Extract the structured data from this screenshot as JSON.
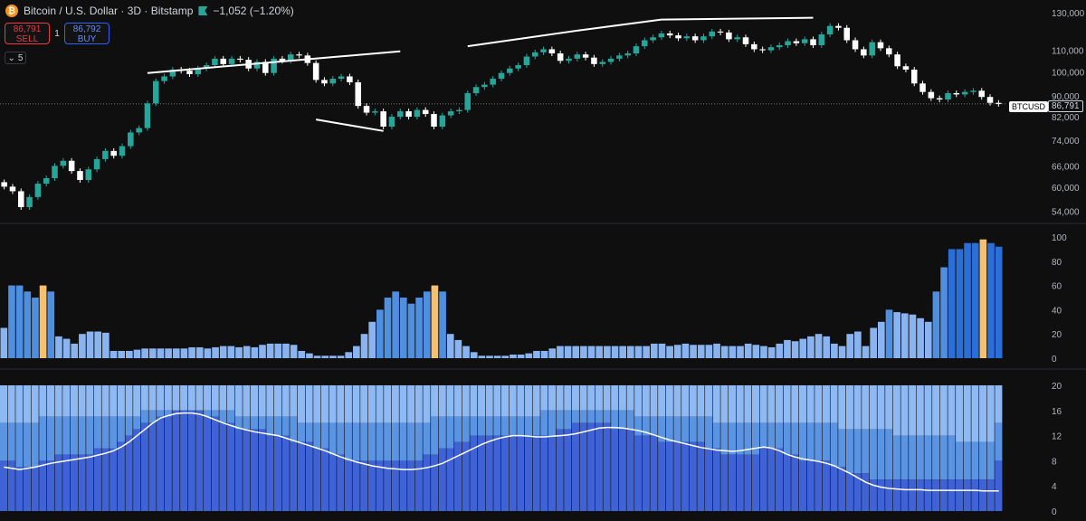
{
  "header": {
    "coin_glyph": "₿",
    "title": "Bitcoin / U.S. Dollar · 3D · Bitstamp",
    "change": "−1,052 (−1.20%)",
    "sell_price": "86,791",
    "sell_label": "SELL",
    "quantity": "1",
    "buy_price": "86,792",
    "buy_label": "BUY",
    "collapse_count": "5",
    "symbol": "BTCUSD",
    "last_price": "86,791"
  },
  "colors": {
    "up": "#26a69a",
    "down": "#ffffff",
    "bar_light": "#8ab4f0",
    "bar_mid": "#4f8fe0",
    "bar_dark": "#2a6ed8",
    "bar_highlight": "#f5c170",
    "stack_top": "#8fb9f2",
    "stack_mid": "#5a94e2",
    "stack_bottom": "#3f63d6"
  },
  "chart_data": [
    {
      "type": "candlestick",
      "title": "",
      "scale": "log",
      "ylim": [
        52000,
        132000
      ],
      "yticks": [
        54000,
        60000,
        66000,
        74000,
        82000,
        90000,
        100000,
        110000,
        130000
      ],
      "ytick_labels": [
        "54,000",
        "60,000",
        "66,000",
        "74,000",
        "82,000",
        "90,000",
        "100,000",
        "110,000",
        "130,000"
      ],
      "last_price": 86791,
      "closes": [
        60200,
        59000,
        55000,
        57500,
        61000,
        62500,
        66000,
        67500,
        64500,
        62000,
        65000,
        68000,
        70500,
        69000,
        72000,
        76500,
        78000,
        87000,
        96000,
        98000,
        101000,
        100500,
        99000,
        101500,
        103000,
        106000,
        103500,
        106000,
        105500,
        101500,
        104500,
        99500,
        106000,
        105000,
        108000,
        107500,
        104000,
        96500,
        95000,
        97000,
        98000,
        95500,
        86000,
        83500,
        84000,
        78500,
        82000,
        84000,
        82000,
        84500,
        83000,
        78500,
        82500,
        84000,
        84500,
        91000,
        93500,
        94500,
        97000,
        99500,
        101500,
        103000,
        107000,
        109000,
        110500,
        108500,
        105000,
        106000,
        108000,
        106500,
        103500,
        104500,
        106000,
        107500,
        108500,
        112000,
        115000,
        116500,
        118500,
        117500,
        116000,
        117000,
        115000,
        117000,
        119500,
        119000,
        115500,
        116500,
        113000,
        110500,
        110000,
        111500,
        112500,
        114500,
        113500,
        115500,
        112500,
        118000,
        122500,
        121500,
        115000,
        110500,
        107500,
        114000,
        111000,
        108000,
        102500,
        101000,
        95000,
        91500,
        89000,
        88500,
        91000,
        90500,
        91500,
        92000,
        89500,
        87200,
        86791
      ],
      "trendlines": [
        {
          "from": [
            17,
            99500
          ],
          "to": [
            47,
            109500
          ]
        },
        {
          "from": [
            37,
            81000
          ],
          "to": [
            45,
            77000
          ]
        },
        {
          "from": [
            55,
            112000
          ],
          "to": [
            68,
            120000
          ]
        },
        {
          "from": [
            68,
            120000
          ],
          "to": [
            78,
            126000
          ]
        },
        {
          "from": [
            78,
            126000
          ],
          "to": [
            96,
            127000
          ]
        }
      ]
    },
    {
      "type": "bar",
      "title": "",
      "ylim": [
        0,
        100
      ],
      "yticks": [
        0,
        20,
        40,
        60,
        80,
        100
      ],
      "values": [
        25,
        60,
        60,
        55,
        50,
        60,
        55,
        18,
        16,
        12,
        20,
        22,
        22,
        21,
        6,
        6,
        6,
        7,
        8,
        8,
        8,
        8,
        8,
        8,
        9,
        9,
        8,
        9,
        10,
        10,
        9,
        10,
        9,
        11,
        12,
        12,
        12,
        11,
        6,
        4,
        2,
        2,
        2,
        2,
        5,
        10,
        20,
        30,
        40,
        50,
        55,
        50,
        45,
        50,
        55,
        60,
        55,
        20,
        15,
        10,
        5,
        2,
        2,
        2,
        2,
        3,
        3,
        4,
        6,
        6,
        8,
        10,
        10,
        10,
        10,
        10,
        10,
        10,
        10,
        10,
        10,
        10,
        10,
        12,
        12,
        10,
        11,
        12,
        11,
        11,
        11,
        12,
        10,
        10,
        10,
        12,
        11,
        10,
        9,
        12,
        15,
        14,
        16,
        18,
        20,
        18,
        12,
        10,
        20,
        22,
        10,
        25,
        30,
        40,
        38,
        37,
        36,
        33,
        30,
        55,
        75,
        90,
        90,
        95,
        95,
        98,
        95,
        92
      ],
      "highlight_indices": [
        5,
        55,
        125
      ]
    },
    {
      "type": "stacked-bar-with-line",
      "title": "",
      "ylim": [
        0,
        20
      ],
      "yticks": [
        0,
        4,
        8,
        12,
        16,
        20
      ],
      "total": 20,
      "top_fill_level": [
        14,
        14,
        14,
        14,
        14,
        15,
        15,
        15,
        15,
        15,
        15,
        15,
        15,
        15,
        15,
        15,
        15,
        15,
        16,
        16,
        16,
        16,
        16,
        16,
        16,
        16,
        16,
        16,
        16,
        16,
        15,
        15,
        15,
        15,
        15,
        15,
        15,
        15,
        14,
        14,
        14,
        14,
        14,
        14,
        14,
        14,
        14,
        14,
        14,
        14,
        14,
        14,
        14,
        14,
        14,
        15,
        15,
        15,
        15,
        15,
        15,
        15,
        15,
        15,
        15,
        15,
        15,
        15,
        15,
        16,
        16,
        16,
        16,
        16,
        16,
        16,
        16,
        16,
        16,
        16,
        16,
        15,
        15,
        15,
        15,
        15,
        15,
        15,
        15,
        15,
        15,
        14,
        14,
        14,
        14,
        14,
        14,
        14,
        14,
        14,
        14,
        14,
        14,
        14,
        14,
        14,
        14,
        13,
        13,
        13,
        13,
        13,
        13,
        13,
        12,
        12,
        12,
        12,
        12,
        12,
        12,
        12,
        11,
        11,
        11,
        11,
        11
      ],
      "mid_fill_level": [
        8,
        8,
        7,
        7,
        7,
        8,
        8,
        9,
        9,
        9,
        9,
        9,
        10,
        10,
        10,
        11,
        12,
        13,
        14,
        14,
        15,
        15,
        16,
        16,
        16,
        16,
        15,
        15,
        14,
        14,
        13,
        13,
        13,
        13,
        12,
        12,
        12,
        11,
        11,
        11,
        10,
        10,
        9,
        9,
        8,
        8,
        8,
        8,
        8,
        8,
        8,
        8,
        8,
        8,
        9,
        9,
        10,
        10,
        11,
        11,
        12,
        12,
        12,
        12,
        12,
        12,
        12,
        12,
        12,
        12,
        12,
        13,
        13,
        14,
        14,
        14,
        14,
        14,
        13,
        13,
        13,
        12,
        12,
        12,
        11,
        11,
        11,
        11,
        11,
        11,
        10,
        10,
        9,
        9,
        9,
        9,
        9,
        10,
        10,
        10,
        9,
        9,
        8,
        8,
        8,
        8,
        7,
        7,
        6,
        6,
        6,
        5,
        5,
        5,
        5,
        5,
        5,
        5,
        5,
        5,
        5,
        5,
        5,
        5,
        5,
        5,
        5
      ],
      "line": [
        7,
        6.8,
        6.6,
        6.8,
        7.0,
        7.3,
        7.6,
        7.8,
        8.0,
        8.2,
        8.4,
        8.6,
        8.9,
        9.2,
        9.6,
        10.2,
        11.0,
        12.0,
        13.0,
        14.0,
        14.8,
        15.2,
        15.5,
        15.6,
        15.6,
        15.4,
        15.0,
        14.5,
        14.0,
        13.6,
        13.2,
        12.9,
        12.6,
        12.4,
        12.2,
        12.0,
        11.6,
        11.2,
        10.8,
        10.4,
        10.0,
        9.6,
        9.1,
        8.6,
        8.2,
        7.8,
        7.5,
        7.2,
        7.0,
        6.8,
        6.7,
        6.6,
        6.6,
        6.7,
        6.9,
        7.2,
        7.6,
        8.2,
        8.8,
        9.4,
        10.0,
        10.6,
        11.1,
        11.5,
        11.8,
        12.0,
        12.0,
        11.9,
        11.8,
        11.8,
        11.9,
        12.0,
        12.1,
        12.3,
        12.6,
        12.9,
        13.2,
        13.3,
        13.3,
        13.2,
        13.0,
        12.8,
        12.5,
        12.1,
        11.7,
        11.3,
        11.0,
        10.7,
        10.4,
        10.1,
        9.9,
        9.7,
        9.6,
        9.5,
        9.6,
        9.8,
        10.0,
        10.2,
        10.0,
        9.6,
        9.0,
        8.6,
        8.3,
        8.1,
        7.9,
        7.6,
        7.2,
        6.6,
        6.0,
        5.3,
        4.6,
        4.1,
        3.8,
        3.6,
        3.5,
        3.4,
        3.4,
        3.4,
        3.3,
        3.3,
        3.3,
        3.3,
        3.3,
        3.3,
        3.3,
        3.2,
        3.2,
        3.2
      ]
    }
  ]
}
